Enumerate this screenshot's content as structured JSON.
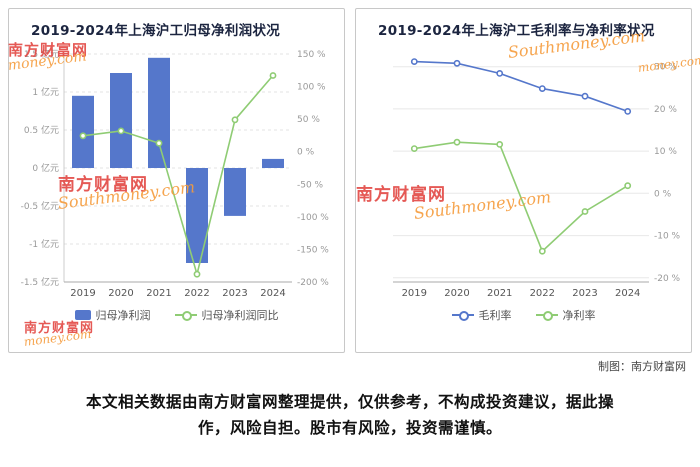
{
  "credit": "制图：南方财富网",
  "disclaimer": "本文相关数据由南方财富网整理提供，仅供参考，不构成投资建议，据此操作，风险自担。股市有风险，投资需谨慎。",
  "watermark": {
    "cn": "南方财富网",
    "en": "Southmoney.com",
    "en_alt": "money.com"
  },
  "colors": {
    "blue": "#5577cb",
    "green": "#8fcc74"
  },
  "chart_data": [
    {
      "type": "bar",
      "title": "2019-2024年上海沪工归母净利润状况",
      "categories": [
        "2019",
        "2020",
        "2021",
        "2022",
        "2023",
        "2024"
      ],
      "series": [
        {
          "name": "归母净利润",
          "chart": "bar",
          "axis": "left",
          "unit": "亿元",
          "color": "#5577cb",
          "values": [
            0.95,
            1.25,
            1.45,
            -1.25,
            -0.63,
            0.12
          ]
        },
        {
          "name": "归母净利润同比",
          "chart": "line",
          "axis": "right",
          "unit": "%",
          "color": "#8fcc74",
          "values": [
            24.5,
            32,
            13,
            -188,
            49,
            117
          ]
        }
      ],
      "left_axis": {
        "unit": "亿元",
        "min": -1.5,
        "max": 1.5,
        "ticks": [
          1.5,
          1,
          0.5,
          0,
          -0.5,
          -1,
          -1.5
        ]
      },
      "right_axis": {
        "unit": "%",
        "min": -200,
        "max": 150,
        "ticks": [
          150,
          100,
          50,
          0,
          -50,
          -100,
          -150,
          -200
        ]
      },
      "legend_position": "bottom",
      "grid": "dashed"
    },
    {
      "type": "line",
      "title": "2019-2024年上海沪工毛利率与净利率状况",
      "categories": [
        "2019",
        "2020",
        "2021",
        "2022",
        "2023",
        "2024"
      ],
      "series": [
        {
          "name": "毛利率",
          "unit": "%",
          "color": "#5577cb",
          "values": [
            31.2,
            30.8,
            28.4,
            24.8,
            23.0,
            19.4
          ]
        },
        {
          "name": "净利率",
          "unit": "%",
          "color": "#8fcc74",
          "values": [
            10.6,
            12.1,
            11.6,
            -13.7,
            -4.3,
            1.8
          ]
        }
      ],
      "y_axis": {
        "unit": "%",
        "min": -21,
        "max": 33,
        "ticks": [
          30,
          20,
          10,
          0,
          -10,
          -20
        ],
        "side": "right"
      },
      "legend_position": "bottom",
      "grid": "solid"
    }
  ]
}
